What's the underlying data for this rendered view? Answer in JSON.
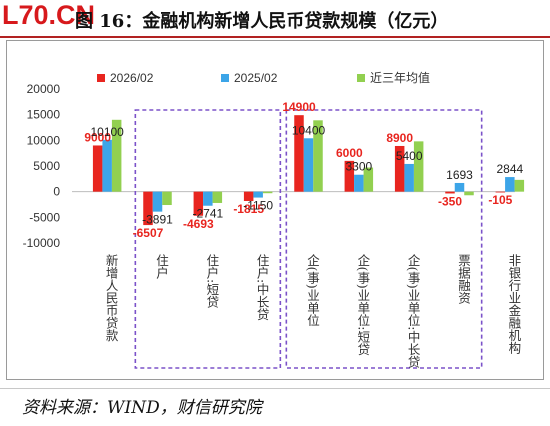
{
  "header": {
    "watermark": "L70.CN",
    "title": "图 16：金融机构新增人民币贷款规模（亿元）"
  },
  "footer": {
    "source": "资料来源：WIND，财信研究院"
  },
  "colors": {
    "series_2026": "#e8251f",
    "series_2025": "#3ca5e8",
    "series_avg": "#92d050",
    "highlight_box": "#7b52c9",
    "label_red": "#e8251f",
    "axis_text": "#333333"
  },
  "chart_data": {
    "type": "bar",
    "categories": [
      "新增人民币贷款",
      "住户",
      "住户:短贷",
      "住户:中长贷",
      "企(事)业单位",
      "企(事)业单位:短贷",
      "企(事)业单位:中长贷",
      "票据融资",
      "非银行业金融机构"
    ],
    "series": [
      {
        "name": "2026/02",
        "values": [
          9000,
          -6507,
          -4693,
          -1815,
          14900,
          6000,
          8900,
          -350,
          -105
        ]
      },
      {
        "name": "2025/02",
        "values": [
          10100,
          -3891,
          -2741,
          -1150,
          10400,
          3300,
          5400,
          1693,
          2844
        ]
      },
      {
        "name": "近三年均值",
        "values": [
          14000,
          -2600,
          -2200,
          -300,
          13900,
          4700,
          9800,
          -700,
          2300
        ]
      }
    ],
    "data_labels": [
      {
        "category": 0,
        "series": 0,
        "text": "9000",
        "style": "red"
      },
      {
        "category": 0,
        "series": 1,
        "text": "10100",
        "style": "black"
      },
      {
        "category": 1,
        "series": 0,
        "text": "-6507",
        "style": "red"
      },
      {
        "category": 1,
        "series": 1,
        "text": "-3891",
        "style": "black"
      },
      {
        "category": 2,
        "series": 0,
        "text": "-4693",
        "style": "red"
      },
      {
        "category": 2,
        "series": 1,
        "text": "-2741",
        "style": "black"
      },
      {
        "category": 3,
        "series": 0,
        "text": "-1815",
        "style": "red"
      },
      {
        "category": 3,
        "series": 1,
        "text": "-1150",
        "style": "black"
      },
      {
        "category": 4,
        "series": 0,
        "text": "14900",
        "style": "red"
      },
      {
        "category": 4,
        "series": 1,
        "text": "10400",
        "style": "black"
      },
      {
        "category": 5,
        "series": 0,
        "text": "6000",
        "style": "red"
      },
      {
        "category": 5,
        "series": 1,
        "text": "3300",
        "style": "black"
      },
      {
        "category": 6,
        "series": 0,
        "text": "8900",
        "style": "red"
      },
      {
        "category": 6,
        "series": 1,
        "text": "5400",
        "style": "black"
      },
      {
        "category": 7,
        "series": 0,
        "text": "-350",
        "style": "red"
      },
      {
        "category": 7,
        "series": 1,
        "text": "1693",
        "style": "black"
      },
      {
        "category": 8,
        "series": 0,
        "text": "-105",
        "style": "red"
      },
      {
        "category": 8,
        "series": 1,
        "text": "2844",
        "style": "black"
      }
    ],
    "yticks": [
      20000,
      15000,
      10000,
      5000,
      0,
      -5000,
      -10000
    ],
    "ylim": [
      -10000,
      20000
    ],
    "xlabel": "",
    "ylabel": "",
    "legend_position": "top",
    "grid": false,
    "highlight_groups": [
      [
        1,
        3
      ],
      [
        4,
        7
      ]
    ]
  }
}
